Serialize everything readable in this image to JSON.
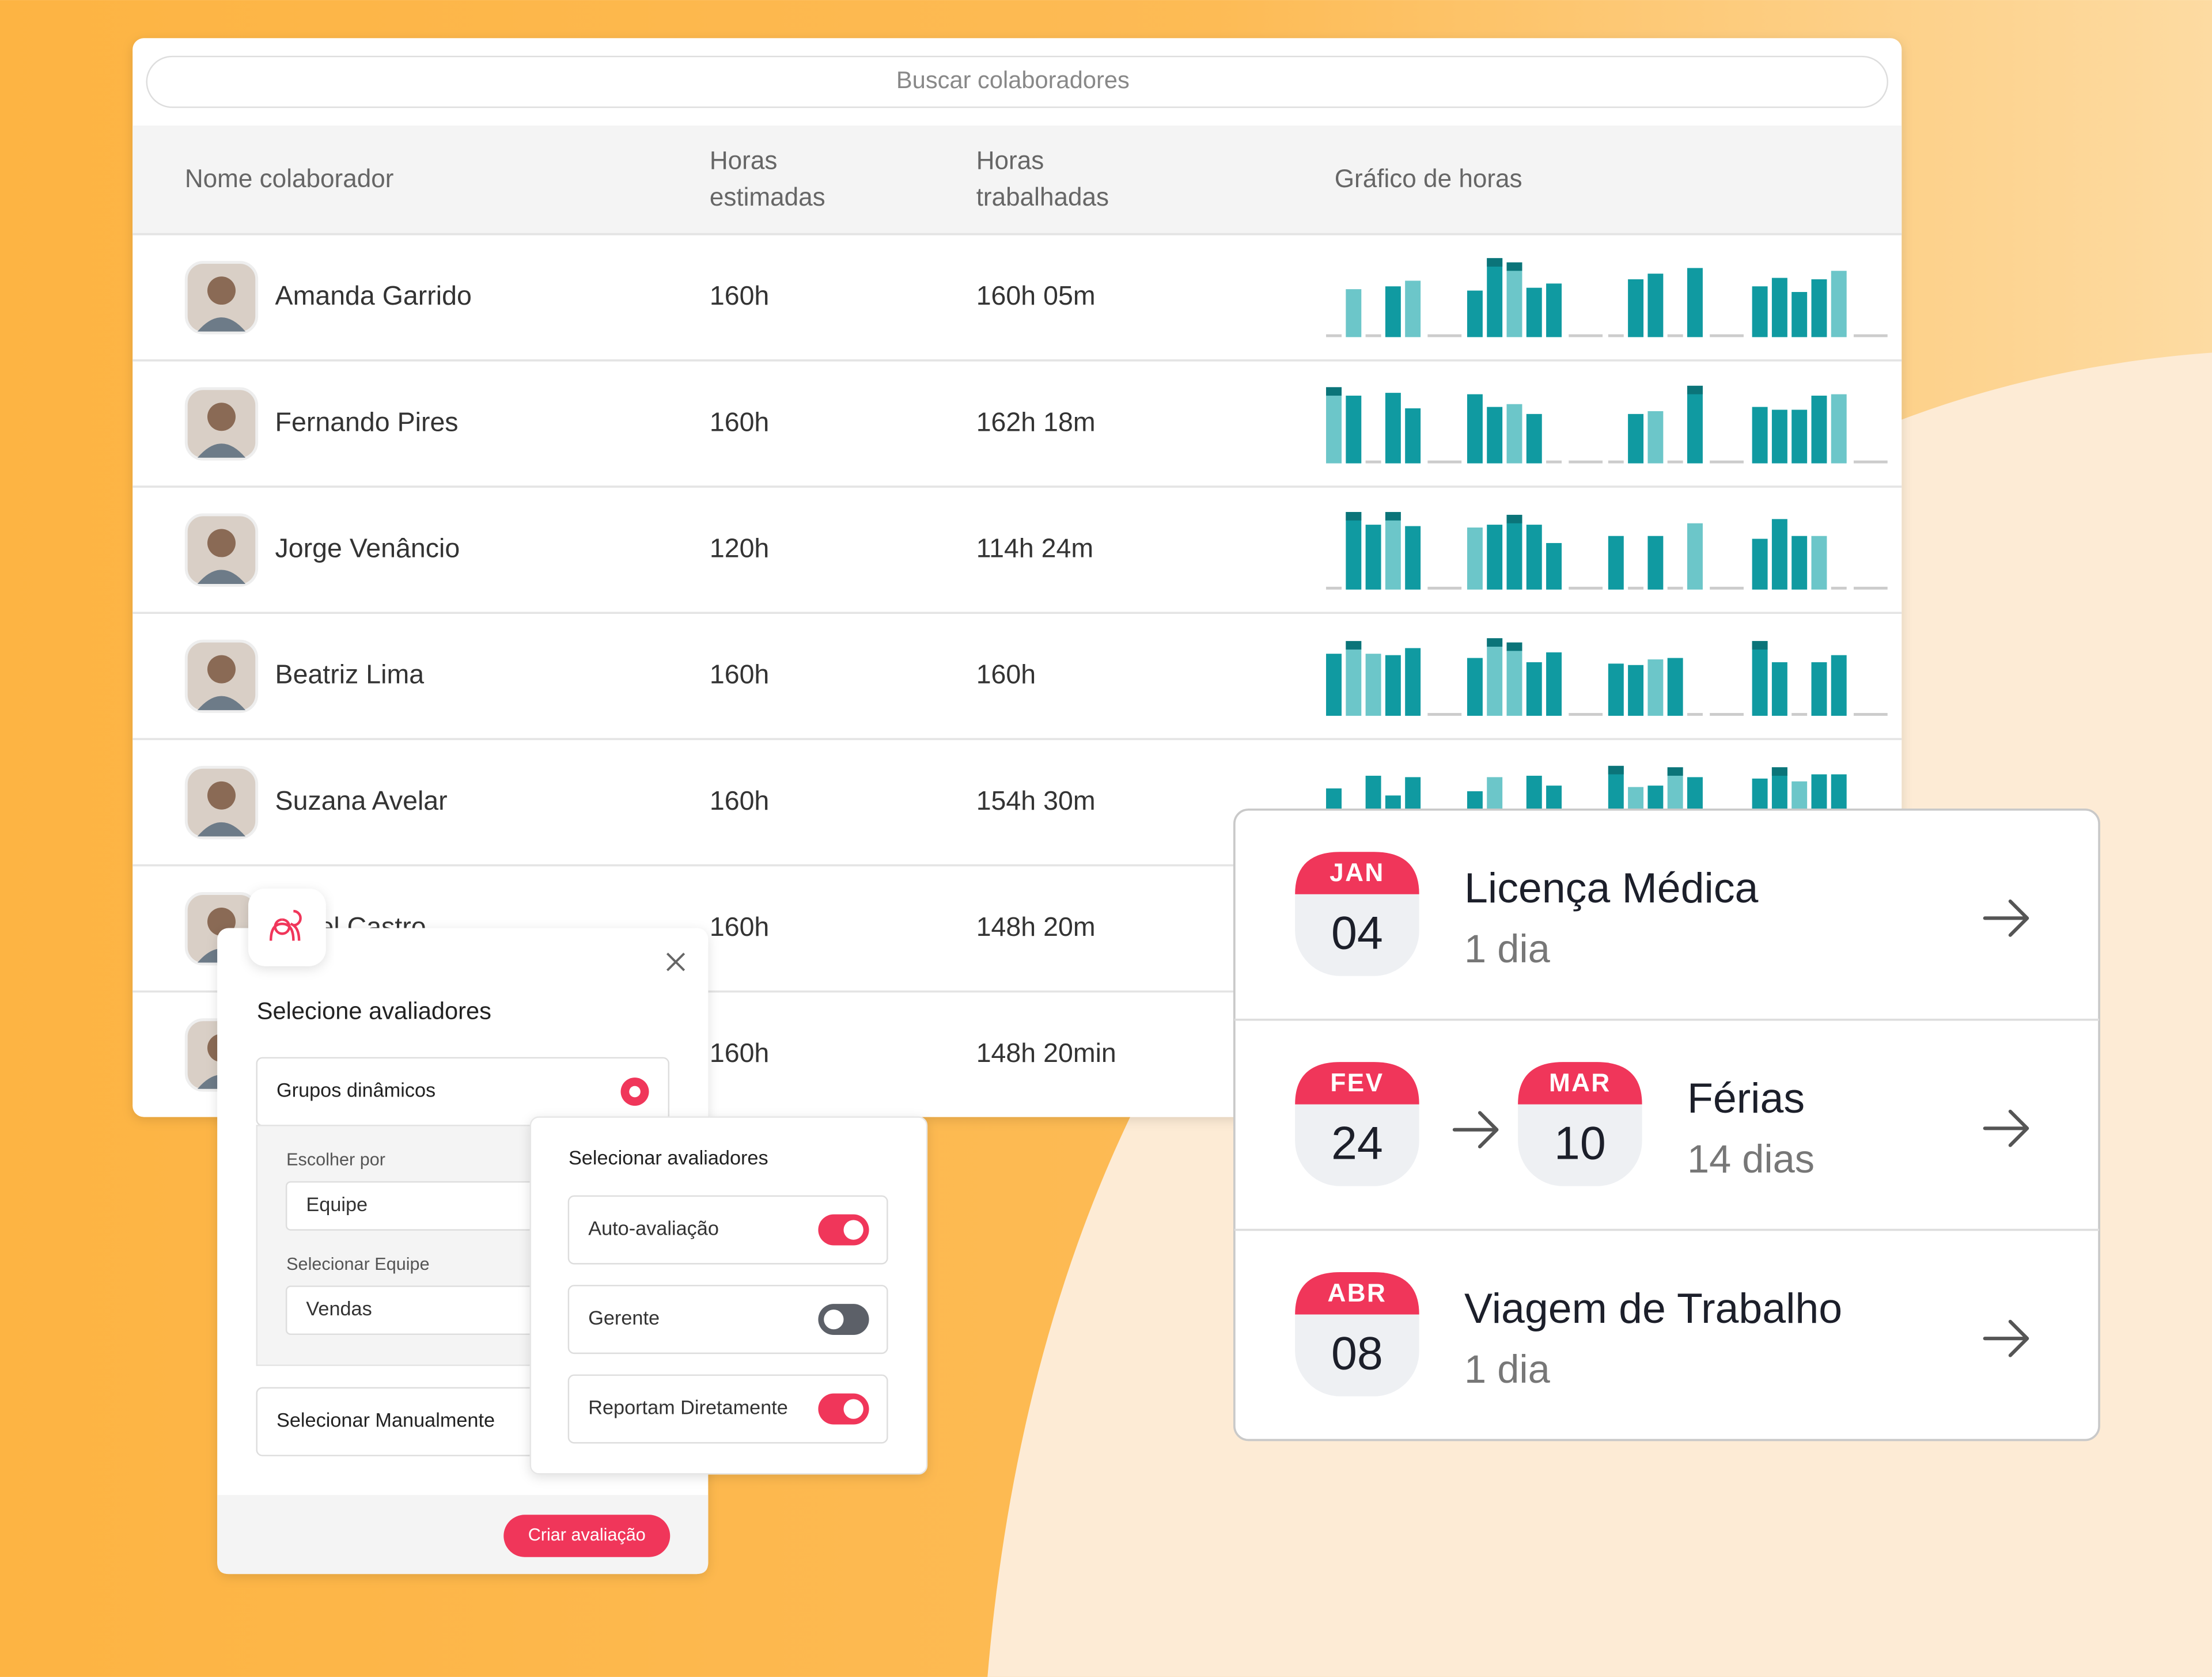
{
  "search": {
    "placeholder": "Buscar colaboradores"
  },
  "table": {
    "headers": [
      [
        "Nome colaborador"
      ],
      [
        "Horas",
        "estimadas"
      ],
      [
        "Horas",
        "trabalhadas"
      ],
      [
        "Gráfico de horas"
      ]
    ],
    "rows": [
      {
        "name": "Amanda Garrido",
        "estimated": "160h",
        "worked": "160h 05m"
      },
      {
        "name": "Fernando Pires",
        "estimated": "160h",
        "worked": "162h 18m"
      },
      {
        "name": "Jorge Venâncio",
        "estimated": "120h",
        "worked": "114h 24m"
      },
      {
        "name": "Beatriz Lima",
        "estimated": "160h",
        "worked": "160h"
      },
      {
        "name": "Suzana Avelar",
        "estimated": "160h",
        "worked": "154h 30m"
      },
      {
        "name": "el Castro",
        "estimated": "160h",
        "worked": "148h 20m"
      },
      {
        "name": null,
        "estimated": "160h",
        "worked": "148h 20min"
      }
    ]
  },
  "reviewers_dialog": {
    "title": "Selecione avaliadores",
    "dynamic_groups": "Grupos dinâmicos",
    "choose_by_label": "Escolher por",
    "choose_by_value": "Equipe",
    "team_label": "Selecionar Equipe",
    "team_value": "Vendas",
    "manual": "Selecionar Manualmente",
    "submit": "Criar avaliação"
  },
  "reviewers_panel": {
    "title": "Selecionar avaliadores",
    "options": [
      {
        "label": "Auto-avaliação",
        "on": true
      },
      {
        "label": "Gerente",
        "on": false
      },
      {
        "label": "Reportam Diretamente",
        "on": true
      }
    ]
  },
  "events": [
    {
      "start": {
        "month": "JAN",
        "day": "04"
      },
      "title": "Licença Médica",
      "duration": "1 dia"
    },
    {
      "start": {
        "month": "FEV",
        "day": "24"
      },
      "end": {
        "month": "MAR",
        "day": "10"
      },
      "title": "Férias",
      "duration": "14 dias"
    },
    {
      "start": {
        "month": "ABR",
        "day": "08"
      },
      "title": "Viagem de Trabalho",
      "duration": "1 dia"
    }
  ]
}
